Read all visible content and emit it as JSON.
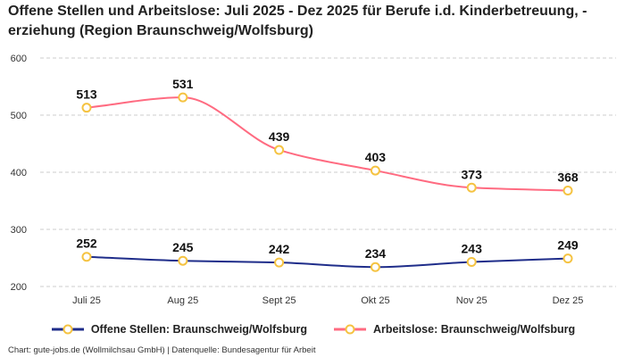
{
  "title": "Offene Stellen und Arbeitslose: Juli 2025 - Dez 2025 für Berufe i.d. Kinderbetreuung, -erziehung (Region Braunschweig/Wolfsburg)",
  "credit": "Chart: gute-jobs.de (Wollmilchsau GmbH) | Datenquelle: Bundesagentur für Arbeit",
  "chart_data": {
    "type": "line",
    "title": "Offene Stellen und Arbeitslose: Juli 2025 - Dez 2025 für Berufe i.d. Kinderbetreuung, -erziehung (Region Braunschweig/Wolfsburg)",
    "categories": [
      "Juli 25",
      "Aug 25",
      "Sept 25",
      "Okt 25",
      "Nov 25",
      "Dez 25"
    ],
    "ylim": [
      200,
      600
    ],
    "yticks": [
      200,
      300,
      400,
      500,
      600
    ],
    "grid": true,
    "legend_position": "bottom",
    "series": [
      {
        "name": "Offene Stellen: Braunschweig/Wolfsburg",
        "values": [
          252,
          245,
          242,
          234,
          243,
          249
        ],
        "color": "#1f2d8a"
      },
      {
        "name": "Arbeitslose: Braunschweig/Wolfsburg",
        "values": [
          513,
          531,
          439,
          403,
          373,
          368
        ],
        "color": "#ff6b81"
      }
    ],
    "marker_color": "#f5c342"
  }
}
